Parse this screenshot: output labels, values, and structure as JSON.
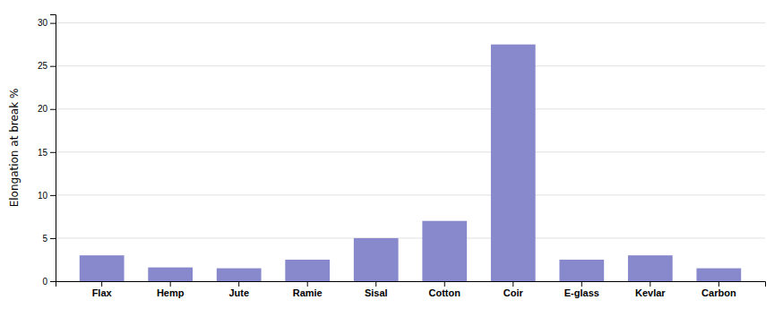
{
  "chart_data": {
    "type": "bar",
    "categories": [
      "Flax",
      "Hemp",
      "Jute",
      "Ramie",
      "Sisal",
      "Cotton",
      "Coir",
      "E-glass",
      "Kevlar",
      "Carbon"
    ],
    "values": [
      3.0,
      1.6,
      1.5,
      2.5,
      5.0,
      7.0,
      27.5,
      2.5,
      3.0,
      1.5
    ],
    "color": "#8888cc",
    "ylabel": "Elongation at break %",
    "ylim": [
      0,
      31
    ],
    "yticks": [
      0,
      5,
      10,
      15,
      20,
      25,
      30
    ],
    "grid": true
  }
}
